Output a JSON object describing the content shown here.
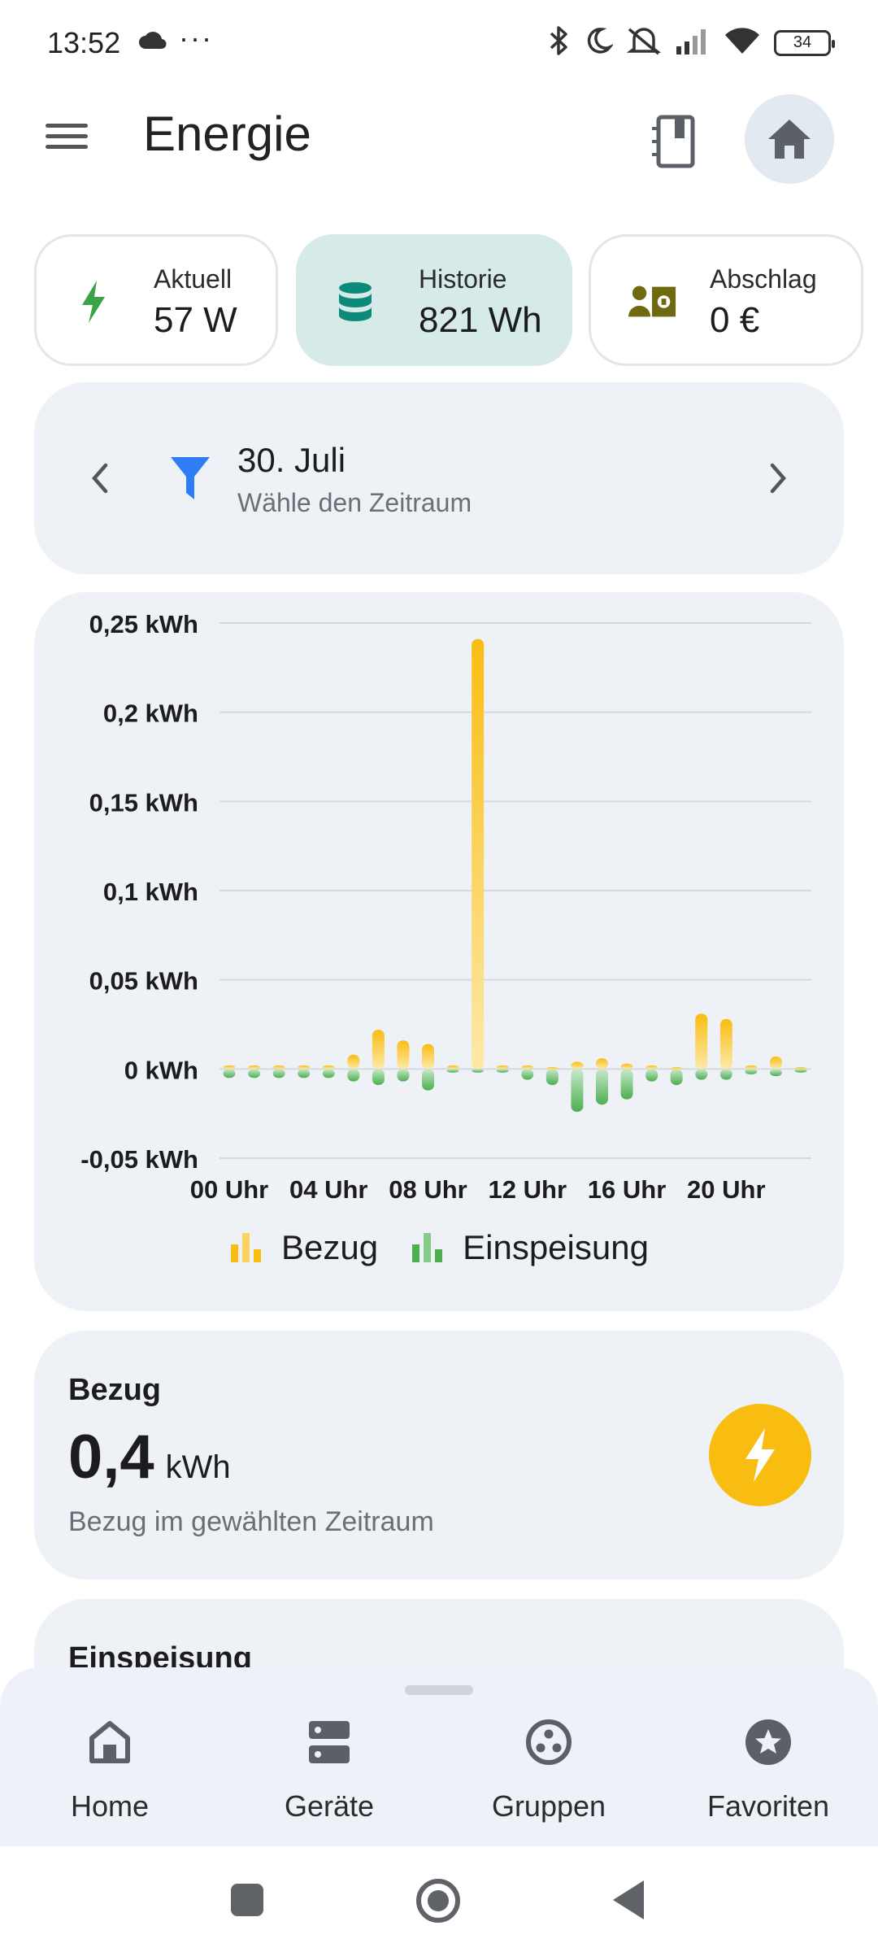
{
  "status_bar": {
    "time": "13:52",
    "dots": "···",
    "battery": "34",
    "icons": [
      "cloud-icon",
      "bluetooth-icon",
      "moon-icon",
      "mute-icon",
      "signal-icon",
      "wifi-icon",
      "battery-icon"
    ]
  },
  "app_bar": {
    "title": "Energie"
  },
  "tiles": [
    {
      "label": "Aktuell",
      "value": "57 W",
      "icon": "bolt-icon",
      "color": "#3aa346"
    },
    {
      "label": "Historie",
      "value": "821 Wh",
      "icon": "database-icon",
      "color": "#0e8a7a",
      "active": true
    },
    {
      "label": "Abschlag",
      "value": "0 €",
      "icon": "payment-icon",
      "color": "#6f6a10"
    }
  ],
  "period": {
    "title": "30. Juli",
    "subtitle": "Wähle den Zeitraum"
  },
  "chart_data": {
    "type": "bar",
    "y_tick_labels": [
      "0,25 kWh",
      "0,2 kWh",
      "0,15 kWh",
      "0,1 kWh",
      "0,05 kWh",
      "0 kWh",
      "-0,05 kWh"
    ],
    "y_ticks": [
      0.25,
      0.2,
      0.15,
      0.1,
      0.05,
      0,
      -0.05
    ],
    "ylim": [
      -0.05,
      0.25
    ],
    "x_tick_labels": [
      "00 Uhr",
      "04 Uhr",
      "08 Uhr",
      "12 Uhr",
      "16 Uhr",
      "20 Uhr"
    ],
    "x": [
      0,
      1,
      2,
      3,
      4,
      5,
      6,
      7,
      8,
      9,
      10,
      11,
      12,
      13,
      14,
      15,
      16,
      17,
      18,
      19,
      20,
      21,
      22,
      23
    ],
    "series": [
      {
        "name": "Bezug",
        "color": "#f9bd12",
        "values": [
          0.002,
          0.002,
          0.002,
          0.002,
          0.002,
          0.008,
          0.022,
          0.016,
          0.014,
          0.002,
          0.241,
          0.002,
          0.002,
          0.001,
          0.004,
          0.006,
          0.003,
          0.002,
          0.001,
          0.031,
          0.028,
          0.002,
          0.007,
          0.001
        ]
      },
      {
        "name": "Einspeisung",
        "color": "#4caf50",
        "values": [
          -0.005,
          -0.005,
          -0.005,
          -0.005,
          -0.005,
          -0.007,
          -0.009,
          -0.007,
          -0.012,
          -0.002,
          -0.002,
          -0.002,
          -0.006,
          -0.009,
          -0.024,
          -0.02,
          -0.017,
          -0.007,
          -0.009,
          -0.006,
          -0.006,
          -0.003,
          -0.004,
          -0.002
        ]
      }
    ],
    "legend": [
      "Bezug",
      "Einspeisung"
    ],
    "legend_position": "bottom",
    "grid": true
  },
  "bezug_card": {
    "label": "Bezug",
    "value": "0,4",
    "unit": "kWh",
    "subtitle": "Bezug im gewählten Zeitraum",
    "icon_color": "#f9bd12"
  },
  "einspeisung_card": {
    "label": "Einspeisung"
  },
  "bottom_nav": [
    {
      "label": "Home",
      "icon": "home-icon"
    },
    {
      "label": "Geräte",
      "icon": "devices-icon"
    },
    {
      "label": "Gruppen",
      "icon": "groups-icon"
    },
    {
      "label": "Favoriten",
      "icon": "star-icon"
    }
  ]
}
